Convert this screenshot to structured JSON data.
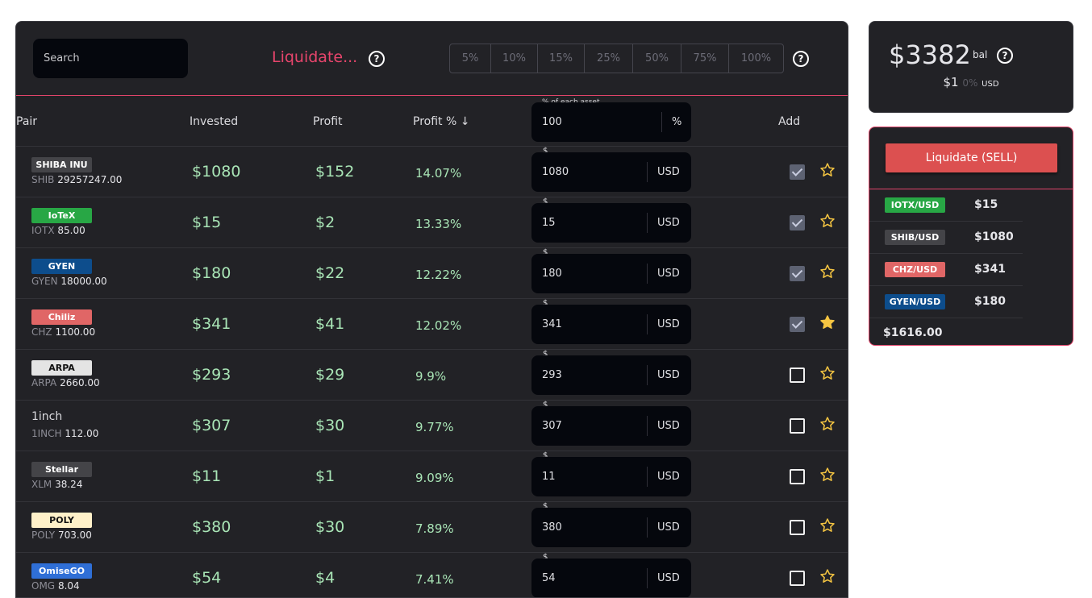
{
  "toolbar": {
    "search_placeholder": "Search",
    "liquidate_label": "Liquidate...",
    "help_glyph": "?",
    "percent_options": [
      "5%",
      "10%",
      "15%",
      "25%",
      "50%",
      "75%",
      "100%"
    ]
  },
  "table": {
    "headers": {
      "pair": "Pair",
      "invested": "Invested",
      "profit": "Profit",
      "profit_pct": "Profit % ↓",
      "add": "Add"
    },
    "percent_input": {
      "label": "% of each asset",
      "value": "100",
      "suffix": "%"
    },
    "dollar_label": "$",
    "currency_suffix": "USD",
    "rows": [
      {
        "name": "SHIBA INU",
        "badge_color": "#444448",
        "badge_text_color": "#ffffff",
        "symbol": "SHIB",
        "amount": "29257247.00",
        "invested": "$1080",
        "profit": "$152",
        "profit_pct": "14.07%",
        "input_value": "1080",
        "checked": true,
        "starred": false
      },
      {
        "name": "IoTeX",
        "badge_color": "#28a745",
        "badge_text_color": "#ffffff",
        "symbol": "IOTX",
        "amount": "85.00",
        "invested": "$15",
        "profit": "$2",
        "profit_pct": "13.33%",
        "input_value": "15",
        "checked": true,
        "starred": false
      },
      {
        "name": "GYEN",
        "badge_color": "#0d4d8c",
        "badge_text_color": "#ffffff",
        "symbol": "GYEN",
        "amount": "18000.00",
        "invested": "$180",
        "profit": "$22",
        "profit_pct": "12.22%",
        "input_value": "180",
        "checked": true,
        "starred": false
      },
      {
        "name": "Chiliz",
        "badge_color": "#e06666",
        "badge_text_color": "#ffffff",
        "symbol": "CHZ",
        "amount": "1100.00",
        "invested": "$341",
        "profit": "$41",
        "profit_pct": "12.02%",
        "input_value": "341",
        "checked": true,
        "starred": true
      },
      {
        "name": "ARPA",
        "badge_color": "#e4e4e4",
        "badge_text_color": "#111111",
        "symbol": "ARPA",
        "amount": "2660.00",
        "invested": "$293",
        "profit": "$29",
        "profit_pct": "9.9%",
        "input_value": "293",
        "checked": false,
        "starred": false
      },
      {
        "name": "1inch",
        "badge_color": "",
        "badge_text_color": "",
        "symbol": "1INCH",
        "amount": "112.00",
        "invested": "$307",
        "profit": "$30",
        "profit_pct": "9.77%",
        "input_value": "307",
        "checked": false,
        "starred": false
      },
      {
        "name": "Stellar",
        "badge_color": "#444448",
        "badge_text_color": "#ffffff",
        "symbol": "XLM",
        "amount": "38.24",
        "invested": "$11",
        "profit": "$1",
        "profit_pct": "9.09%",
        "input_value": "11",
        "checked": false,
        "starred": false
      },
      {
        "name": "POLY",
        "badge_color": "#fff1c9",
        "badge_text_color": "#111111",
        "symbol": "POLY",
        "amount": "703.00",
        "invested": "$380",
        "profit": "$30",
        "profit_pct": "7.89%",
        "input_value": "380",
        "checked": false,
        "starred": false
      },
      {
        "name": "OmiseGO",
        "badge_color": "#2f6fd6",
        "badge_text_color": "#ffffff",
        "symbol": "OMG",
        "amount": "8.04",
        "invested": "$54",
        "profit": "$4",
        "profit_pct": "7.41%",
        "input_value": "54",
        "checked": false,
        "starred": false
      }
    ]
  },
  "balance": {
    "amount": "$3382",
    "suffix": "bal",
    "sub_amount": "$1",
    "sub_pct": "0%",
    "sub_currency": "USD"
  },
  "sell_panel": {
    "button_label": "Liquidate (SELL)",
    "items": [
      {
        "pair": "IOTX/USD",
        "badge_color": "#28a745",
        "value": "$15"
      },
      {
        "pair": "SHIB/USD",
        "badge_color": "#444448",
        "value": "$1080"
      },
      {
        "pair": "CHZ/USD",
        "badge_color": "#e06666",
        "value": "$341"
      },
      {
        "pair": "GYEN/USD",
        "badge_color": "#0d4d8c",
        "value": "$180"
      }
    ],
    "total": "$1616.00"
  },
  "colors": {
    "accent": "#e8456c",
    "profit_text": "#a9e5b6",
    "star": "#f5c542",
    "sell_button": "#dc5050"
  }
}
